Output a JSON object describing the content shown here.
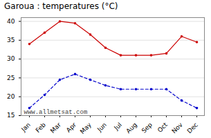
{
  "chart_data": {
    "type": "line",
    "title": "Garoua : temperatures (°C)",
    "categories": [
      "Jan",
      "Feb",
      "Mar",
      "Apr",
      "May",
      "Jun",
      "Jul",
      "Aug",
      "Sep",
      "Oct",
      "Nov",
      "Dec"
    ],
    "series": [
      {
        "color": "#cc0000",
        "values": [
          34,
          37,
          40,
          39.5,
          36.5,
          33,
          31,
          31,
          31,
          31.5,
          36,
          34.5
        ],
        "marker": "circle",
        "line_style": "solid"
      },
      {
        "color": "#0000cc",
        "values": [
          17,
          20.5,
          24.5,
          26,
          24.5,
          23,
          22,
          22,
          22,
          22,
          19,
          17
        ],
        "marker": "circle",
        "line_style": "dashed"
      }
    ],
    "ylim": [
      15,
      41
    ],
    "yticks": [
      15,
      20,
      25,
      30,
      35,
      40
    ],
    "grid": true,
    "annotations": [
      "www.allmetsat.com"
    ]
  }
}
